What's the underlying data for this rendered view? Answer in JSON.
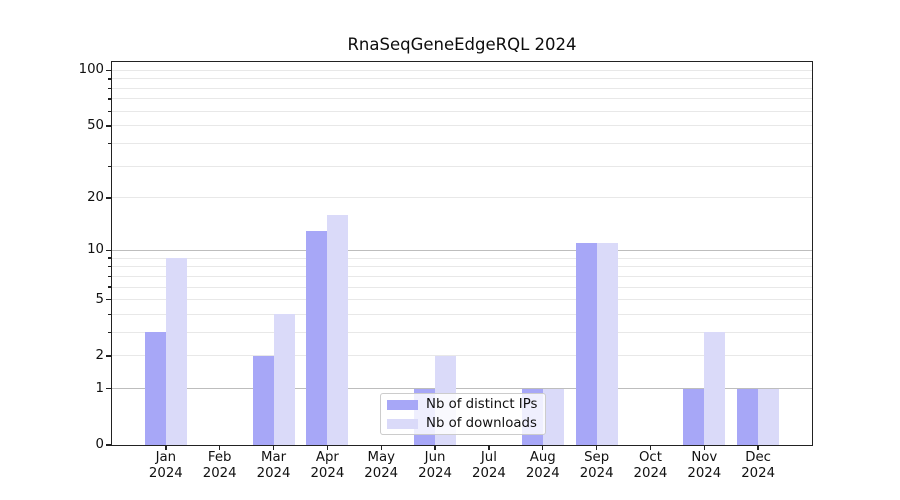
{
  "chart_data": {
    "type": "bar",
    "title": "RnaSeqGeneEdgeRQL 2024",
    "categories": [
      "Jan",
      "Feb",
      "Mar",
      "Apr",
      "May",
      "Jun",
      "Jul",
      "Aug",
      "Sep",
      "Oct",
      "Nov",
      "Dec"
    ],
    "year_label": "2024",
    "series": [
      {
        "name": "Nb of distinct IPs",
        "color": "#a7a7f7",
        "values": [
          3,
          0,
          2,
          13,
          0,
          1,
          0,
          1,
          11,
          0,
          1,
          1
        ]
      },
      {
        "name": "Nb of downloads",
        "color": "#dadaf9",
        "values": [
          9,
          0,
          4,
          16,
          0,
          2,
          0,
          1,
          11,
          0,
          3,
          1
        ]
      }
    ],
    "xlabel": "",
    "ylabel": "",
    "yaxis": {
      "scale": "log1p",
      "ylim": [
        0,
        111
      ],
      "tick_labels": [
        0,
        1,
        2,
        5,
        10,
        20,
        50,
        100
      ],
      "major_gridlines": [
        1,
        10
      ],
      "minor_gridlines": [
        2,
        3,
        4,
        5,
        6,
        7,
        8,
        9,
        20,
        30,
        40,
        50,
        60,
        70,
        80,
        90,
        100
      ]
    },
    "grid": true,
    "legend_position": "lower center"
  },
  "colors": {
    "grid_major": "#bdbdbd",
    "grid_minor": "#e8e8e8",
    "spine": "#222222",
    "text": "#111111",
    "legend_border": "#cccccc",
    "background": "#ffffff"
  }
}
